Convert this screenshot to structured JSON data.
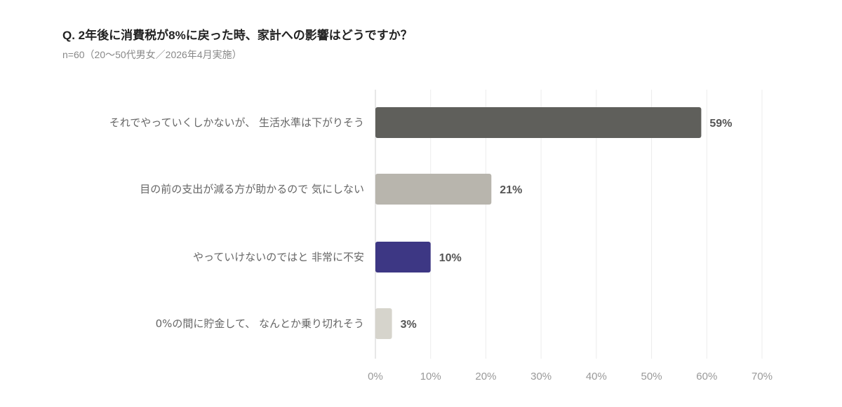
{
  "chart_data": {
    "type": "bar",
    "orientation": "horizontal",
    "title": "Q. 2年後に消費税が8%に戻った時、家計への影響はどうですか？",
    "subtitle": "n=60（20〜50代男女／2026年4月実施）",
    "categories": [
      "それでやっていくしかないが、 生活水準は下がりそう",
      "目の前の支出が減る方が助かるので 気にしない",
      "やっていけないのではと 非常に不安",
      "0%の間に貯金して、 なんとか乗り切れそう"
    ],
    "values": [
      59,
      21,
      10,
      3
    ],
    "value_labels": [
      "59%",
      "21%",
      "10%",
      "3%"
    ],
    "colors": [
      "#5f5f5b",
      "#b8b5ad",
      "#3d3784",
      "#d6d4cc"
    ],
    "xlim": [
      0,
      70
    ],
    "xticks": [
      0,
      10,
      20,
      30,
      40,
      50,
      60,
      70
    ],
    "xtick_labels": [
      "0%",
      "10%",
      "20%",
      "30%",
      "40%",
      "50%",
      "60%",
      "70%"
    ],
    "grid": true,
    "legend": "none"
  }
}
